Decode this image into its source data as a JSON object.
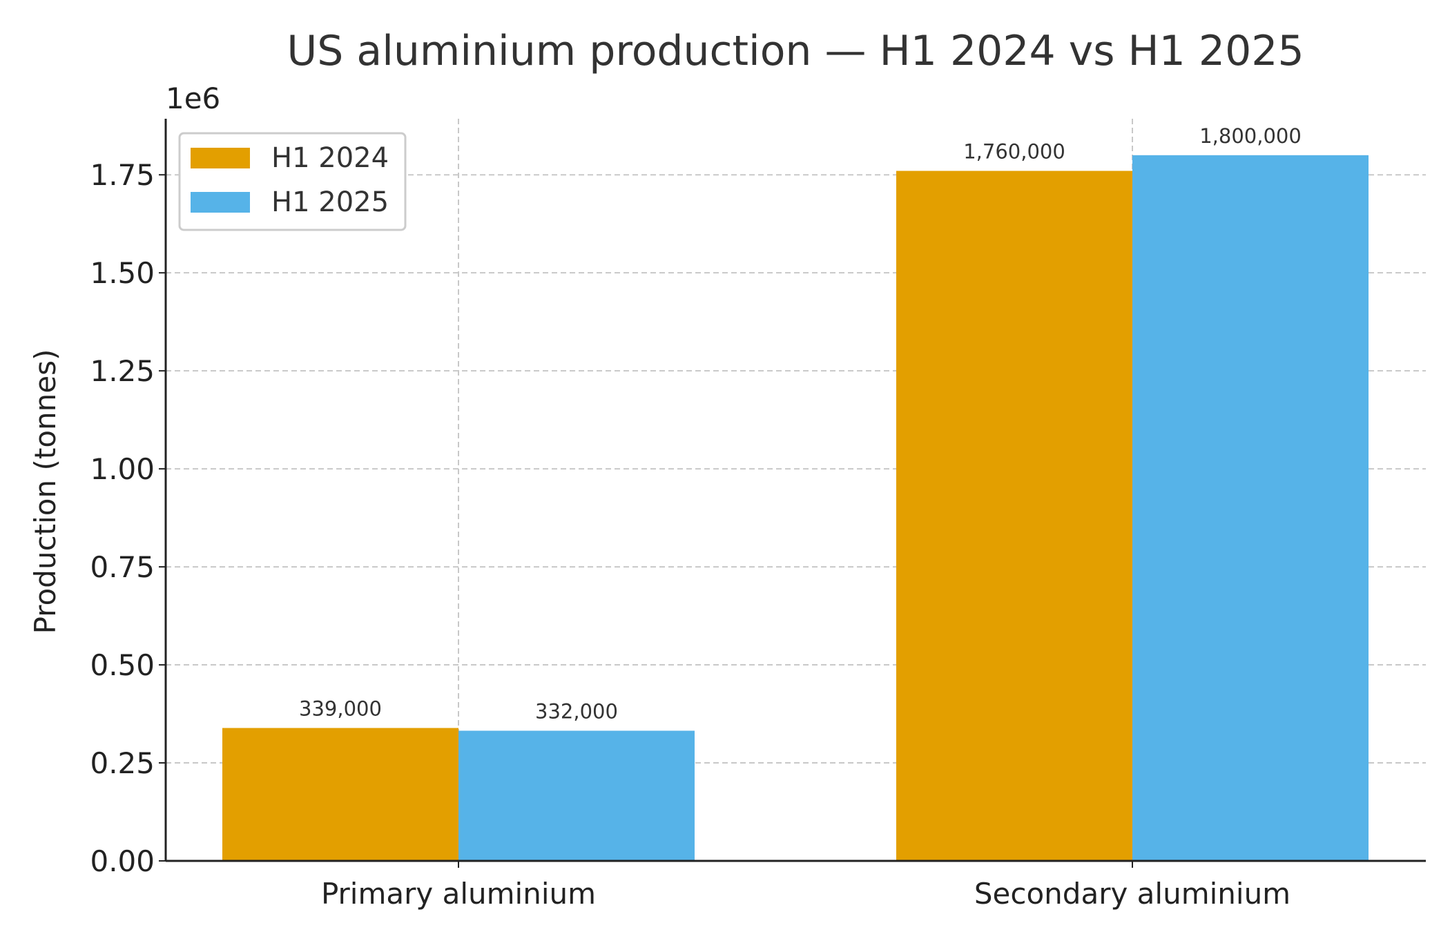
{
  "chart_data": {
    "type": "bar",
    "title": "US aluminium production — H1 2024 vs H1 2025",
    "xlabel": "",
    "ylabel": "Production (tonnes)",
    "y_offset_label": "1e6",
    "categories": [
      "Primary aluminium",
      "Secondary aluminium"
    ],
    "series": [
      {
        "name": "H1 2024",
        "color": "#E39F00",
        "values": [
          339000,
          1760000
        ],
        "labels": [
          "339,000",
          "1,760,000"
        ]
      },
      {
        "name": "H1 2025",
        "color": "#56B3E8",
        "values": [
          332000,
          1800000
        ],
        "labels": [
          "332,000",
          "1,800,000"
        ]
      }
    ],
    "ylim": [
      0,
      1893000
    ],
    "yticks": [
      0,
      250000,
      500000,
      750000,
      1000000,
      1250000,
      1500000,
      1750000
    ],
    "ytick_labels": [
      "0.00",
      "0.25",
      "0.50",
      "0.75",
      "1.00",
      "1.25",
      "1.50",
      "1.75"
    ],
    "grid": true,
    "legend_position": "top-left"
  }
}
